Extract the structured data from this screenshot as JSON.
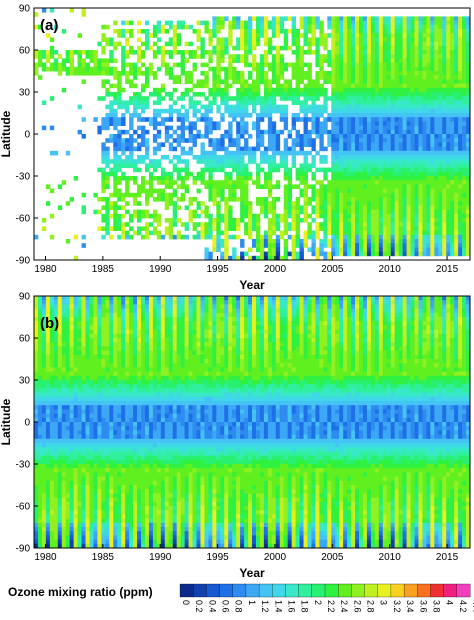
{
  "chart_data": [
    {
      "type": "heatmap",
      "panel_label": "(a)",
      "xlabel": "Year",
      "ylabel": "Latitude",
      "xlim": [
        1979,
        2017
      ],
      "ylim": [
        -90,
        90
      ],
      "x_ticks": [
        1980,
        1985,
        1990,
        1995,
        2000,
        2005,
        2010,
        2015
      ],
      "y_ticks": [
        90,
        60,
        30,
        0,
        -30,
        -60,
        -90
      ],
      "z_range_ppm": [
        0,
        4.4
      ],
      "data_coverage": "sparse before 2005; gaps (white) where no observations"
    },
    {
      "type": "heatmap",
      "panel_label": "(b)",
      "xlabel": "Year",
      "ylabel": "Latitude",
      "xlim": [
        1979,
        2017
      ],
      "ylim": [
        -90,
        90
      ],
      "x_ticks": [
        1980,
        1985,
        1990,
        1995,
        2000,
        2005,
        2010,
        2015
      ],
      "y_ticks": [
        90,
        60,
        30,
        0,
        -30,
        -60,
        -90
      ],
      "z_range_ppm": [
        0,
        4.4
      ],
      "data_coverage": "complete"
    }
  ],
  "colorbar": {
    "title": "Ozone mixing ratio (ppm)",
    "ticks": [
      "0",
      "0.2",
      "0.4",
      "0.6",
      "0.8",
      "1",
      "1.2",
      "1.4",
      "1.6",
      "1.8",
      "2",
      "2.2",
      "2.4",
      "2.6",
      "2.8",
      "3",
      "3.2",
      "3.4",
      "3.6",
      "3.8",
      "4",
      "4.2",
      "4.4"
    ],
    "colors": [
      "#0d2b8c",
      "#1040b0",
      "#1558d0",
      "#1e70e8",
      "#2e8cf0",
      "#3ca8f5",
      "#45c3f5",
      "#40d8e8",
      "#38e8c8",
      "#30f0a0",
      "#28f070",
      "#30f040",
      "#60f020",
      "#90f020",
      "#c0f020",
      "#e8f020",
      "#f8d020",
      "#f8a020",
      "#f87020",
      "#f03030",
      "#f02080",
      "#f040c0"
    ]
  }
}
